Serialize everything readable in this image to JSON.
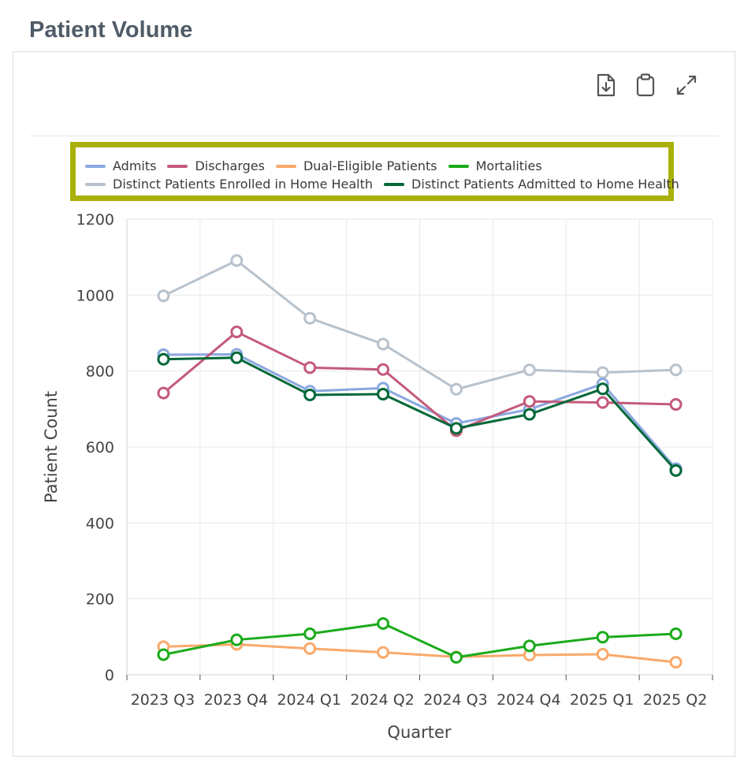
{
  "page": {
    "title": "Patient Volume"
  },
  "toolbar": {
    "icons": [
      "download-icon",
      "clipboard-icon",
      "expand-icon"
    ]
  },
  "chart_data": {
    "type": "line",
    "title": "",
    "xlabel": "Quarter",
    "ylabel": "Patient Count",
    "ylim": [
      0,
      1200
    ],
    "yticks": [
      "0",
      "200",
      "400",
      "600",
      "800",
      "1000",
      "1200"
    ],
    "categories": [
      "2023 Q3",
      "2023 Q4",
      "2024 Q1",
      "2024 Q2",
      "2024 Q3",
      "2024 Q4",
      "2025 Q1",
      "2025 Q2"
    ],
    "grid": true,
    "legend_position": "top",
    "series": [
      {
        "name": "Distinct Patients Enrolled in Home Health",
        "color": "#b8c2cc",
        "values": [
          998,
          1091,
          939,
          871,
          752,
          803,
          796,
          803
        ]
      },
      {
        "name": "Admits",
        "color": "#8aa8e0",
        "values": [
          843,
          844,
          747,
          755,
          662,
          699,
          766,
          543
        ]
      },
      {
        "name": "Discharges",
        "color": "#c45a7c",
        "values": [
          742,
          903,
          809,
          804,
          643,
          720,
          717,
          712
        ]
      },
      {
        "name": "Distinct Patients Admitted to Home Health",
        "color": "#006838",
        "values": [
          831,
          835,
          737,
          739,
          649,
          686,
          753,
          538
        ]
      },
      {
        "name": "Dual-Eligible Patients",
        "color": "#f9a96b",
        "values": [
          74,
          80,
          69,
          59,
          47,
          52,
          54,
          33
        ]
      },
      {
        "name": "Mortalities",
        "color": "#1aab1a",
        "values": [
          53,
          92,
          108,
          135,
          46,
          76,
          99,
          108
        ]
      }
    ],
    "legend_rows": [
      [
        "Admits",
        "Discharges",
        "Dual-Eligible Patients",
        "Mortalities"
      ],
      [
        "Distinct Patients Enrolled in Home Health",
        "Distinct Patients Admitted to Home Health"
      ]
    ]
  }
}
